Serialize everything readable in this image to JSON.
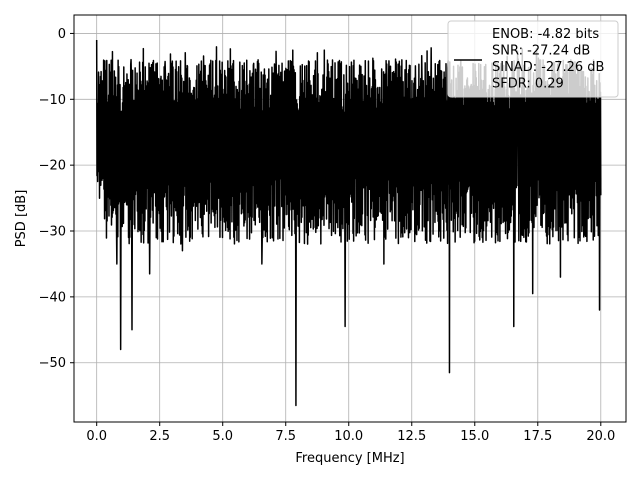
{
  "chart_data": {
    "type": "line",
    "title": "",
    "xlabel": "Frequency [MHz]",
    "ylabel": "PSD [dB]",
    "xlim": [
      -0.9,
      21.0
    ],
    "ylim": [
      -59.0,
      2.8
    ],
    "grid": true,
    "legend_position": "top-right",
    "xticks": [
      0.0,
      2.5,
      5.0,
      7.5,
      10.0,
      12.5,
      15.0,
      17.5,
      20.0
    ],
    "xtick_labels": [
      "0.0",
      "2.5",
      "5.0",
      "7.5",
      "10.0",
      "12.5",
      "15.0",
      "17.5",
      "20.0"
    ],
    "yticks": [
      0,
      -10,
      -20,
      -30,
      -40,
      -50
    ],
    "ytick_labels": [
      "0",
      "−10",
      "−20",
      "−30",
      "−40",
      "−50"
    ],
    "series": [
      {
        "color": "#000000",
        "x_range": [
          0.0,
          20.0
        ],
        "start_value": -1.0,
        "typical_range": [
          -26,
          -4
        ],
        "dips": [
          {
            "x": 0.95,
            "y": -48.0
          },
          {
            "x": 1.4,
            "y": -45.0
          },
          {
            "x": 0.8,
            "y": -35.0
          },
          {
            "x": 2.1,
            "y": -36.5
          },
          {
            "x": 3.4,
            "y": -33.0
          },
          {
            "x": 6.55,
            "y": -35.0
          },
          {
            "x": 7.9,
            "y": -56.5
          },
          {
            "x": 9.85,
            "y": -44.5
          },
          {
            "x": 11.4,
            "y": -35.0
          },
          {
            "x": 14.0,
            "y": -51.5
          },
          {
            "x": 16.55,
            "y": -44.5
          },
          {
            "x": 17.3,
            "y": -39.5
          },
          {
            "x": 18.4,
            "y": -37.0
          },
          {
            "x": 19.95,
            "y": -42.0
          }
        ]
      }
    ],
    "legend_entries": [
      "ENOB: -4.82 bits",
      "SNR: -27.24 dB",
      "SINAD: -27.26 dB",
      "SFDR: 0.29"
    ]
  }
}
